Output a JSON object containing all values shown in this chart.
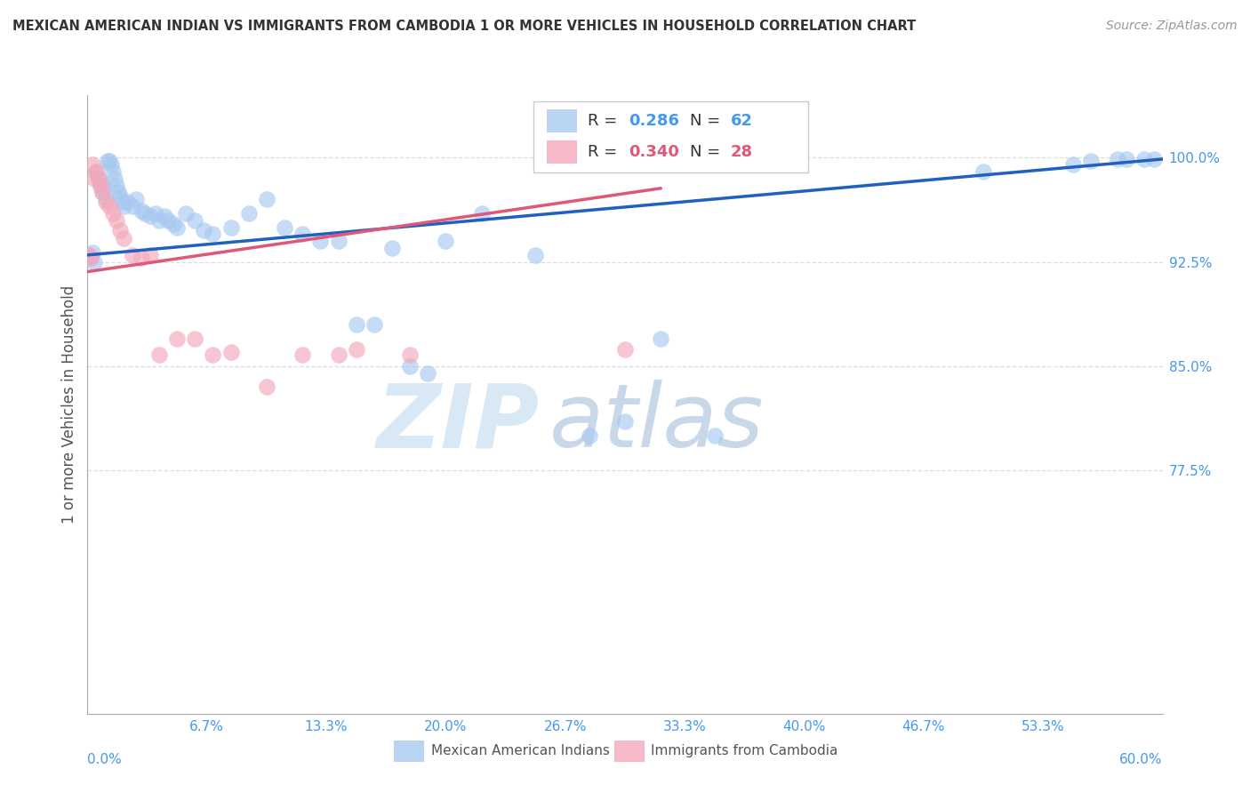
{
  "title": "MEXICAN AMERICAN INDIAN VS IMMIGRANTS FROM CAMBODIA 1 OR MORE VEHICLES IN HOUSEHOLD CORRELATION CHART",
  "source": "Source: ZipAtlas.com",
  "ylabel": "1 or more Vehicles in Household",
  "yticks": [
    "100.0%",
    "92.5%",
    "85.0%",
    "77.5%"
  ],
  "ytick_vals": [
    1.0,
    0.925,
    0.85,
    0.775
  ],
  "xlim": [
    0.0,
    0.6
  ],
  "ylim": [
    0.6,
    1.045
  ],
  "watermark_zip": "ZIP",
  "watermark_atlas": "atlas",
  "legend_blue_r": "0.286",
  "legend_blue_n": "62",
  "legend_pink_r": "0.340",
  "legend_pink_n": "28",
  "label_blue": "Mexican American Indians",
  "label_pink": "Immigrants from Cambodia",
  "color_blue": "#A8C8F0",
  "color_pink": "#F4A8BA",
  "line_blue": "#2060C0",
  "line_pink": "#E05878",
  "title_color": "#333333",
  "axis_label_color": "#4499EE",
  "r_color_blue": "#4499EE",
  "r_color_pink": "#E05878",
  "source_color": "#999999",
  "grid_color": "#DDDDDD",
  "blue_x": [
    0.001,
    0.002,
    0.003,
    0.004,
    0.005,
    0.006,
    0.007,
    0.008,
    0.009,
    0.01,
    0.011,
    0.012,
    0.013,
    0.014,
    0.015,
    0.016,
    0.017,
    0.018,
    0.019,
    0.02,
    0.022,
    0.025,
    0.027,
    0.03,
    0.032,
    0.035,
    0.038,
    0.04,
    0.043,
    0.045,
    0.048,
    0.05,
    0.055,
    0.06,
    0.065,
    0.07,
    0.08,
    0.09,
    0.1,
    0.11,
    0.12,
    0.13,
    0.14,
    0.15,
    0.16,
    0.17,
    0.18,
    0.19,
    0.2,
    0.22,
    0.25,
    0.28,
    0.3,
    0.32,
    0.35,
    0.5,
    0.55,
    0.56,
    0.575,
    0.58,
    0.59,
    0.595
  ],
  "blue_y": [
    0.93,
    0.928,
    0.932,
    0.925,
    0.99,
    0.985,
    0.98,
    0.975,
    0.98,
    0.97,
    0.998,
    0.998,
    0.995,
    0.99,
    0.985,
    0.98,
    0.975,
    0.972,
    0.968,
    0.965,
    0.968,
    0.965,
    0.97,
    0.962,
    0.96,
    0.958,
    0.96,
    0.955,
    0.958,
    0.955,
    0.952,
    0.95,
    0.96,
    0.955,
    0.948,
    0.945,
    0.95,
    0.96,
    0.97,
    0.95,
    0.945,
    0.94,
    0.94,
    0.88,
    0.88,
    0.935,
    0.85,
    0.845,
    0.94,
    0.96,
    0.93,
    0.8,
    0.81,
    0.87,
    0.8,
    0.99,
    0.995,
    0.998,
    0.999,
    0.999,
    0.999,
    0.999
  ],
  "pink_x": [
    0.001,
    0.002,
    0.003,
    0.004,
    0.005,
    0.006,
    0.007,
    0.008,
    0.01,
    0.012,
    0.014,
    0.016,
    0.018,
    0.02,
    0.025,
    0.03,
    0.035,
    0.04,
    0.05,
    0.06,
    0.07,
    0.08,
    0.1,
    0.12,
    0.14,
    0.15,
    0.18,
    0.3
  ],
  "pink_y": [
    0.93,
    0.928,
    0.995,
    0.985,
    0.99,
    0.985,
    0.98,
    0.975,
    0.968,
    0.965,
    0.96,
    0.955,
    0.948,
    0.942,
    0.93,
    0.928,
    0.93,
    0.858,
    0.87,
    0.87,
    0.858,
    0.86,
    0.835,
    0.858,
    0.858,
    0.862,
    0.858,
    0.862
  ],
  "blue_trend_x": [
    0.0,
    0.6
  ],
  "blue_trend_y": [
    0.93,
    0.999
  ],
  "pink_trend_x": [
    0.0,
    0.32
  ],
  "pink_trend_y": [
    0.918,
    0.978
  ]
}
